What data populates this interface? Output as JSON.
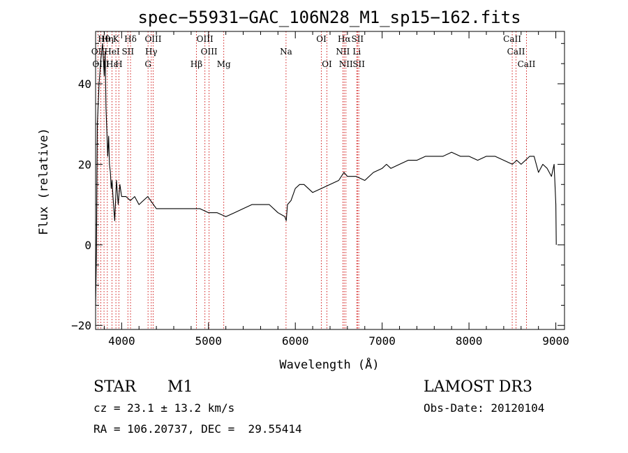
{
  "chart_data": {
    "type": "line",
    "title": "spec−55931−GAC_106N28_M1_sp15−162.fits",
    "xlabel": "Wavelength (Å)",
    "ylabel": "Flux (relative)",
    "xlim": [
      3700,
      9100
    ],
    "ylim": [
      -21,
      53
    ],
    "x_ticks": [
      4000,
      5000,
      6000,
      7000,
      8000,
      9000
    ],
    "x_tick_labels": [
      "4000",
      "5000",
      "6000",
      "7000",
      "8000",
      "9000"
    ],
    "y_ticks": [
      -20,
      0,
      20,
      40
    ],
    "y_tick_labels": [
      "−20",
      "0",
      "20",
      "40"
    ],
    "series": [
      {
        "name": "flux",
        "x": [
          3700,
          3710,
          3720,
          3740,
          3760,
          3780,
          3800,
          3810,
          3820,
          3830,
          3840,
          3850,
          3860,
          3870,
          3880,
          3890,
          3900,
          3920,
          3940,
          3960,
          3980,
          4000,
          4050,
          4100,
          4150,
          4200,
          4250,
          4300,
          4400,
          4500,
          4600,
          4700,
          4800,
          4900,
          5000,
          5100,
          5200,
          5300,
          5400,
          5500,
          5600,
          5700,
          5800,
          5880,
          5895,
          5910,
          5950,
          6000,
          6050,
          6100,
          6200,
          6300,
          6400,
          6500,
          6560,
          6600,
          6700,
          6800,
          6900,
          7000,
          7050,
          7100,
          7200,
          7300,
          7400,
          7500,
          7600,
          7700,
          7800,
          7900,
          8000,
          8100,
          8200,
          8300,
          8400,
          8500,
          8550,
          8600,
          8650,
          8700,
          8750,
          8800,
          8850,
          8900,
          8950,
          8980,
          9000,
          9005
        ],
        "y": [
          -15,
          -2,
          30,
          40,
          46,
          50,
          42,
          48,
          34,
          28,
          22,
          27,
          20,
          18,
          14,
          16,
          12,
          6,
          16,
          10,
          15,
          12,
          12,
          11,
          12,
          10,
          11,
          12,
          9,
          9,
          9,
          9,
          9,
          9,
          8,
          8,
          7,
          8,
          9,
          10,
          10,
          10,
          8,
          7,
          6,
          10,
          11,
          14,
          15,
          15,
          13,
          14,
          15,
          16,
          18,
          17,
          17,
          16,
          18,
          19,
          20,
          19,
          20,
          21,
          21,
          22,
          22,
          22,
          23,
          22,
          22,
          21,
          22,
          22,
          21,
          20,
          21,
          20,
          21,
          22,
          22,
          18,
          20,
          19,
          17,
          20,
          10,
          0
        ]
      }
    ],
    "lines": [
      {
        "label": "Hθ",
        "wl": 3797,
        "row": 0
      },
      {
        "label": "OII",
        "wl": 3727,
        "row": 1
      },
      {
        "label": "OIII",
        "wl": 3760,
        "row": 2
      },
      {
        "label": "Hη",
        "wl": 3835,
        "row": 0
      },
      {
        "label": "HeI",
        "wl": 3889,
        "row": 1
      },
      {
        "label": "Hε",
        "wl": 3889,
        "row": 2
      },
      {
        "label": "K",
        "wl": 3934,
        "row": 0
      },
      {
        "label": "SII",
        "wl": 4072,
        "row": 1
      },
      {
        "label": "H",
        "wl": 3968,
        "row": 2
      },
      {
        "label": "Hδ",
        "wl": 4102,
        "row": 0
      },
      {
        "label": "OIII",
        "wl": 4363,
        "row": 0
      },
      {
        "label": "Hγ",
        "wl": 4341,
        "row": 1
      },
      {
        "label": "G",
        "wl": 4304,
        "row": 2
      },
      {
        "label": "OIII",
        "wl": 4959,
        "row": 0
      },
      {
        "label": "OIII",
        "wl": 5007,
        "row": 1
      },
      {
        "label": "Hβ",
        "wl": 4861,
        "row": 2
      },
      {
        "label": "Mg",
        "wl": 5176,
        "row": 2
      },
      {
        "label": "Na",
        "wl": 5893,
        "row": 1
      },
      {
        "label": "OI",
        "wl": 6300,
        "row": 0
      },
      {
        "label": "OI",
        "wl": 6364,
        "row": 2
      },
      {
        "label": "Hα",
        "wl": 6563,
        "row": 0
      },
      {
        "label": "SII",
        "wl": 6716,
        "row": 0
      },
      {
        "label": "NII",
        "wl": 6548,
        "row": 1
      },
      {
        "label": "Li",
        "wl": 6708,
        "row": 1
      },
      {
        "label": "NII",
        "wl": 6583,
        "row": 2
      },
      {
        "label": "SII",
        "wl": 6731,
        "row": 2
      },
      {
        "label": "CaII",
        "wl": 8498,
        "row": 0
      },
      {
        "label": "CaII",
        "wl": 8542,
        "row": 1
      },
      {
        "label": "CaII",
        "wl": 8662,
        "row": 2
      }
    ]
  },
  "info": {
    "object_type": "STAR",
    "subclass": "M1",
    "survey": "LAMOST DR3",
    "cz": "cz = 23.1 ± 13.2 km/s",
    "obs_date": "Obs-Date: 20120104",
    "coords": "RA = 106.20737, DEC =  29.55414"
  },
  "colors": {
    "line": "#000000",
    "marker": "#cc0000",
    "background": "#ffffff"
  }
}
